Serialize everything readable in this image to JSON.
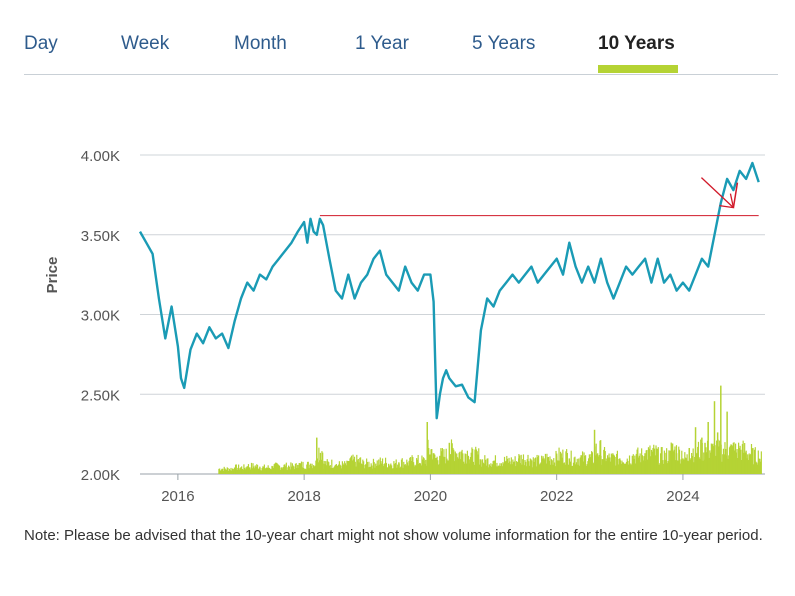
{
  "tabs": [
    {
      "label": "Day",
      "active": false
    },
    {
      "label": "Week",
      "active": false
    },
    {
      "label": "Month",
      "active": false
    },
    {
      "label": "1 Year",
      "active": false
    },
    {
      "label": "5 Years",
      "active": false
    },
    {
      "label": "10 Years",
      "active": true
    }
  ],
  "note": "Note: Please be advised that the 10-year chart might not show volume information for the entire 10-year period.",
  "colors": {
    "price_line": "#1a9bb5",
    "volume": "#b5d334",
    "reference_line": "#d11a2a",
    "active_tab": "#b5d334",
    "tab_text": "#2e5b8c"
  },
  "chart_data": {
    "type": "line",
    "ylabel": "Price",
    "ylim": [
      2000,
      4000
    ],
    "xlim": [
      2015.4,
      2025.3
    ],
    "y_ticks": [
      "2.00K",
      "2.50K",
      "3.00K",
      "3.50K",
      "4.00K"
    ],
    "y_tick_values": [
      2000,
      2500,
      3000,
      3500,
      4000
    ],
    "x_ticks": [
      "2016",
      "2018",
      "2020",
      "2022",
      "2024"
    ],
    "x_tick_values": [
      2016,
      2018,
      2020,
      2022,
      2024
    ],
    "grid": true,
    "series": [
      {
        "type": "line",
        "x": [
          2015.4,
          2015.5,
          2015.6,
          2015.7,
          2015.8,
          2015.9,
          2016.0,
          2016.05,
          2016.1,
          2016.2,
          2016.3,
          2016.4,
          2016.5,
          2016.6,
          2016.7,
          2016.8,
          2016.9,
          2017.0,
          2017.1,
          2017.2,
          2017.3,
          2017.4,
          2017.5,
          2017.6,
          2017.7,
          2017.8,
          2017.9,
          2018.0,
          2018.05,
          2018.1,
          2018.15,
          2018.2,
          2018.25,
          2018.3,
          2018.4,
          2018.5,
          2018.6,
          2018.7,
          2018.8,
          2018.9,
          2019.0,
          2019.1,
          2019.2,
          2019.3,
          2019.4,
          2019.5,
          2019.6,
          2019.7,
          2019.8,
          2019.9,
          2020.0,
          2020.05,
          2020.1,
          2020.15,
          2020.2,
          2020.25,
          2020.3,
          2020.4,
          2020.5,
          2020.6,
          2020.7,
          2020.8,
          2020.9,
          2021.0,
          2021.1,
          2021.2,
          2021.3,
          2021.4,
          2021.5,
          2021.6,
          2021.7,
          2021.8,
          2021.9,
          2022.0,
          2022.1,
          2022.2,
          2022.3,
          2022.4,
          2022.5,
          2022.6,
          2022.7,
          2022.8,
          2022.9,
          2023.0,
          2023.1,
          2023.2,
          2023.3,
          2023.4,
          2023.5,
          2023.6,
          2023.7,
          2023.8,
          2023.9,
          2024.0,
          2024.1,
          2024.2,
          2024.3,
          2024.4,
          2024.5,
          2024.6,
          2024.7,
          2024.8,
          2024.9,
          2025.0,
          2025.1,
          2025.2
        ],
        "y": [
          3520,
          3450,
          3380,
          3100,
          2850,
          3050,
          2800,
          2600,
          2540,
          2780,
          2880,
          2820,
          2920,
          2850,
          2880,
          2790,
          2960,
          3100,
          3200,
          3150,
          3250,
          3220,
          3300,
          3350,
          3400,
          3450,
          3520,
          3580,
          3450,
          3600,
          3520,
          3500,
          3600,
          3560,
          3350,
          3150,
          3100,
          3250,
          3100,
          3200,
          3250,
          3350,
          3400,
          3250,
          3200,
          3150,
          3300,
          3200,
          3150,
          3250,
          3250,
          3080,
          2350,
          2500,
          2600,
          2650,
          2600,
          2550,
          2560,
          2480,
          2450,
          2900,
          3100,
          3050,
          3150,
          3200,
          3250,
          3200,
          3250,
          3300,
          3200,
          3250,
          3300,
          3350,
          3250,
          3450,
          3300,
          3200,
          3300,
          3200,
          3350,
          3200,
          3100,
          3200,
          3300,
          3250,
          3300,
          3350,
          3200,
          3350,
          3200,
          3250,
          3150,
          3200,
          3150,
          3250,
          3350,
          3300,
          3500,
          3700,
          3850,
          3780,
          3900,
          3850,
          3950,
          3830
        ]
      },
      {
        "type": "bar",
        "name": "Volume",
        "x": [
          2016.7,
          2016.9,
          2017.1,
          2017.3,
          2017.5,
          2017.7,
          2017.9,
          2018.1,
          2018.2,
          2018.3,
          2018.5,
          2018.7,
          2018.9,
          2019.1,
          2019.3,
          2019.5,
          2019.7,
          2019.9,
          2019.95,
          2020.05,
          2020.15,
          2020.3,
          2020.4,
          2020.6,
          2020.8,
          2021.0,
          2021.2,
          2021.4,
          2021.6,
          2021.8,
          2022.0,
          2022.2,
          2022.4,
          2022.6,
          2022.7,
          2022.8,
          2023.0,
          2023.2,
          2023.4,
          2023.6,
          2023.8,
          2023.9,
          2024.0,
          2024.1,
          2024.2,
          2024.3,
          2024.35,
          2024.4,
          2024.5,
          2024.55,
          2024.6,
          2024.7,
          2024.8,
          2024.9,
          2025.0,
          2025.1,
          2025.2
        ],
        "rel": [
          0.02,
          0.025,
          0.03,
          0.025,
          0.03,
          0.03,
          0.035,
          0.04,
          0.14,
          0.04,
          0.035,
          0.05,
          0.04,
          0.045,
          0.04,
          0.045,
          0.05,
          0.05,
          0.2,
          0.06,
          0.07,
          0.12,
          0.08,
          0.07,
          0.05,
          0.05,
          0.05,
          0.06,
          0.05,
          0.06,
          0.07,
          0.06,
          0.06,
          0.17,
          0.07,
          0.06,
          0.06,
          0.07,
          0.08,
          0.07,
          0.09,
          0.08,
          0.06,
          0.1,
          0.18,
          0.14,
          0.12,
          0.2,
          0.28,
          0.16,
          0.34,
          0.24,
          0.12,
          0.1,
          0.08,
          0.07,
          0.06
        ]
      }
    ],
    "reference_line": {
      "y": 3620,
      "x_start": 2018.25,
      "x_end": 2025.2
    },
    "annotation": {
      "type": "arrow",
      "x": 2024.8,
      "y": 3620
    }
  }
}
